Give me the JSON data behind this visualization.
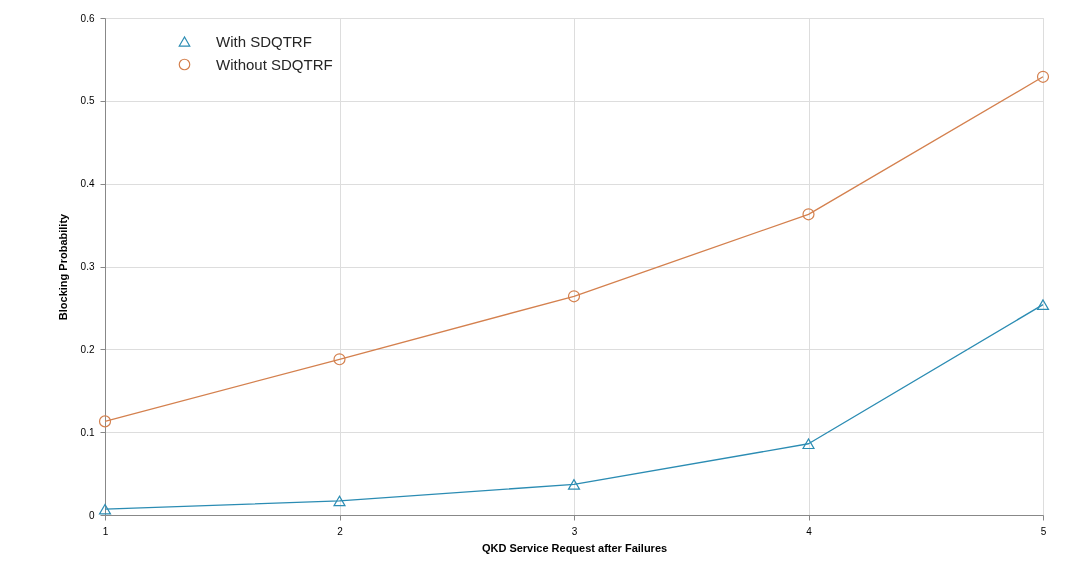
{
  "chart_data": {
    "type": "line",
    "xlabel": "QKD Service Request after Failures",
    "ylabel": "Blocking Probability",
    "x": [
      1,
      2,
      3,
      4,
      5
    ],
    "series": [
      {
        "name": "With SDQTRF",
        "color": "#2b8cb3",
        "marker": "triangle",
        "values": [
          0.007,
          0.017,
          0.037,
          0.086,
          0.254
        ]
      },
      {
        "name": "Without SDQTRF",
        "color": "#d4804e",
        "marker": "circle",
        "values": [
          0.113,
          0.188,
          0.264,
          0.363,
          0.529
        ]
      }
    ],
    "xlim": [
      1,
      5
    ],
    "xticks": [
      1,
      2,
      3,
      4,
      5
    ],
    "ylim": [
      0,
      0.6
    ],
    "yticks": [
      0,
      0.1,
      0.2,
      0.3,
      0.4,
      0.5,
      0.6
    ],
    "grid": true,
    "legend": "top left",
    "line_style": "solid"
  }
}
